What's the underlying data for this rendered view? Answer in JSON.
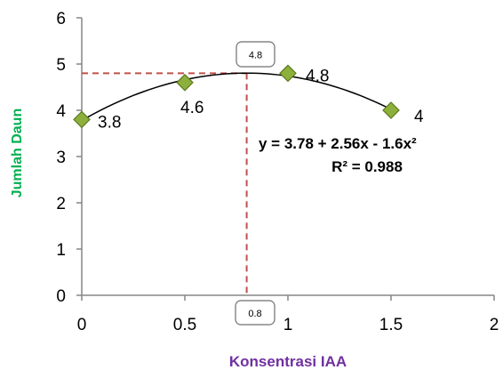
{
  "chart_data": {
    "type": "scatter",
    "xlabel": "Konsentrasi IAA",
    "ylabel": "Jumlah Daun",
    "xlim": [
      0,
      2
    ],
    "ylim": [
      0,
      6
    ],
    "x_ticks": [
      "0",
      "0.5",
      "1",
      "1.5",
      "2"
    ],
    "y_ticks": [
      "0",
      "1",
      "2",
      "3",
      "4",
      "5",
      "6"
    ],
    "grid": false,
    "series": [
      {
        "points": [
          {
            "x": 0,
            "y": 3.8,
            "label": "3.8"
          },
          {
            "x": 0.5,
            "y": 4.6,
            "label": "4.6"
          },
          {
            "x": 1,
            "y": 4.8,
            "label": "4.8"
          },
          {
            "x": 1.5,
            "y": 4.0,
            "label": "4"
          }
        ],
        "marker": "diamond",
        "color": "#8db03c"
      }
    ],
    "trendline": {
      "type": "polynomial",
      "coefficients": [
        3.78,
        2.56,
        -1.6
      ],
      "equation_text": "y = 3.78 + 2.56x - 1.6x²",
      "r2_text": "R² = 0.988"
    },
    "optimum": {
      "x": 0.8,
      "y": 4.8,
      "x_callout": "0.8",
      "y_callout": "4.8",
      "line_color": "#c0504d"
    },
    "colors": {
      "xlabel": "#7030a0",
      "ylabel": "#00b050",
      "axis": "#868686",
      "trendline": "#000000"
    }
  }
}
